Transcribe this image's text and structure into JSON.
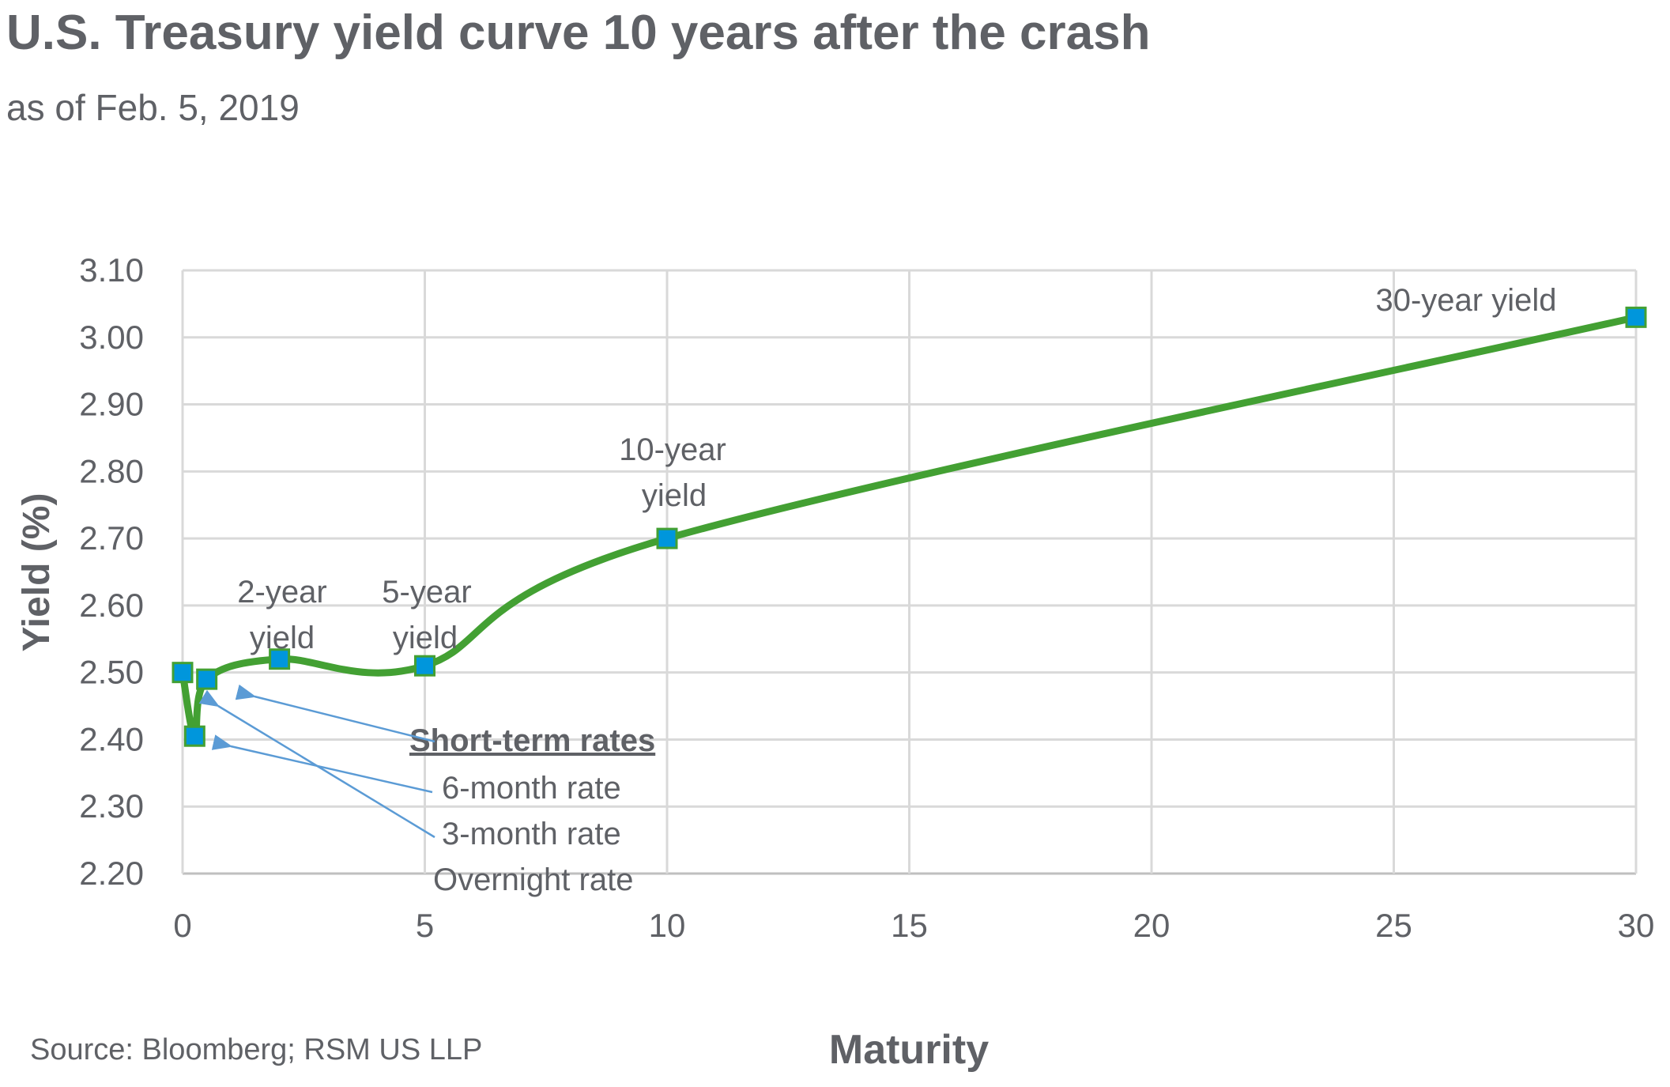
{
  "chart_data": {
    "type": "line",
    "title": "U.S. Treasury yield curve 10 years after the crash",
    "subtitle": "as of Feb. 5, 2019",
    "xlabel": "Maturity",
    "ylabel": "Yield (%)",
    "source": "Source: Bloomberg; RSM US LLP",
    "xlim": [
      0,
      30
    ],
    "ylim": [
      2.2,
      3.1
    ],
    "xticks": [
      "0",
      "5",
      "10",
      "15",
      "20",
      "25",
      "30"
    ],
    "yticks": [
      "3.10",
      "3.00",
      "2.90",
      "2.80",
      "2.70",
      "2.60",
      "2.50",
      "2.40",
      "2.30",
      "2.20"
    ],
    "grid": true,
    "smooth": true,
    "points": [
      {
        "x": 0,
        "y": 2.5
      },
      {
        "x": 0.25,
        "y": 2.405
      },
      {
        "x": 0.5,
        "y": 2.49
      },
      {
        "x": 2,
        "y": 2.52
      },
      {
        "x": 5,
        "y": 2.51
      },
      {
        "x": 10,
        "y": 2.7
      },
      {
        "x": 30,
        "y": 3.03
      }
    ],
    "annotations": {
      "two_year": [
        "2-year",
        "yield"
      ],
      "five_year": [
        "5-year",
        "yield"
      ],
      "ten_year": [
        "10-year",
        "yield"
      ],
      "thirty_year": "30-year yield",
      "short_term_heading": "Short-term rates",
      "six_month": "6-month rate",
      "three_month": "3-month rate",
      "overnight": "Overnight rate"
    },
    "colors": {
      "line": "#43a033",
      "marker_fill": "#0096dc",
      "marker_stroke": "#43a033",
      "arrow": "#5b9bd5",
      "grid": "#d9d9d9",
      "text": "#5f6166"
    }
  }
}
